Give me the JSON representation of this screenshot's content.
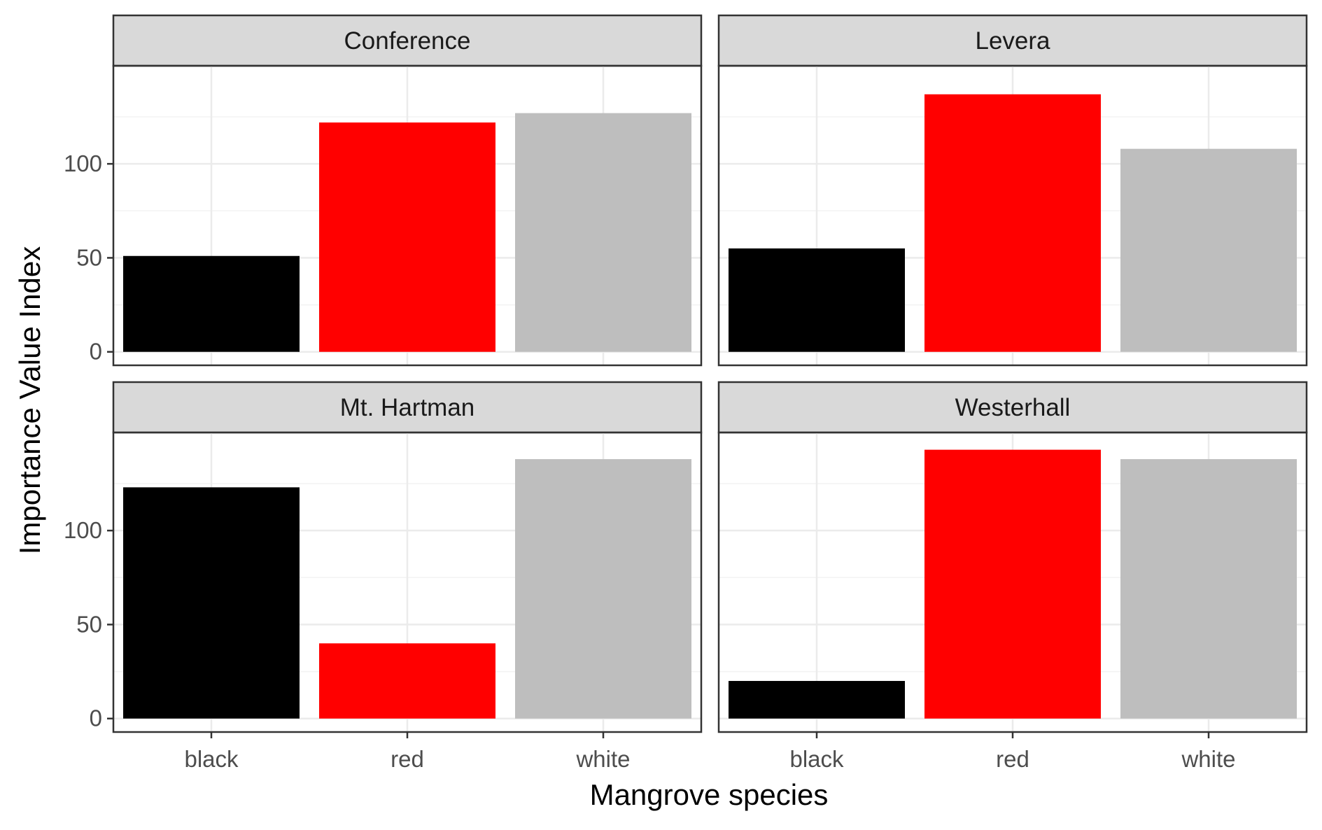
{
  "chart_data": {
    "type": "bar",
    "facet_layout": "2x2",
    "xlabel": "Mangrove species",
    "ylabel": "Importance Value Index",
    "categories": [
      "black",
      "red",
      "white"
    ],
    "colors": {
      "black": "#000000",
      "red": "#ff0000",
      "white": "#bebebe"
    },
    "ylim": [
      0,
      145
    ],
    "yticks": [
      0,
      50,
      100
    ],
    "grid": true,
    "panel_border": "#333333",
    "strip_fill": "#d9d9d9",
    "grid_color": "#ebebeb",
    "panels": [
      {
        "title": "Conference",
        "values": [
          51,
          122,
          127
        ]
      },
      {
        "title": "Levera",
        "values": [
          55,
          137,
          108
        ]
      },
      {
        "title": "Mt. Hartman",
        "values": [
          123,
          40,
          138
        ]
      },
      {
        "title": "Westerhall",
        "values": [
          20,
          143,
          138
        ]
      }
    ]
  }
}
